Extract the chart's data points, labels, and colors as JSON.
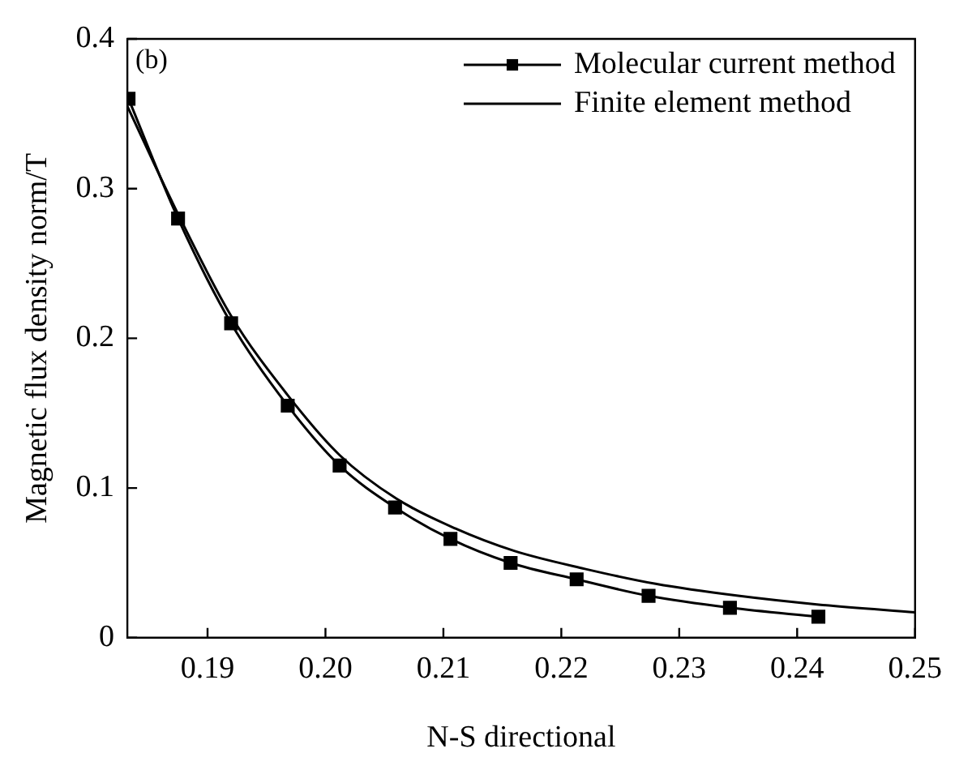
{
  "chart_data": {
    "type": "line",
    "xlabel": "N-S directional",
    "ylabel": "Magnetic flux density norm/T",
    "annotations": [
      "(b)"
    ],
    "xlim": [
      0.1832,
      0.25
    ],
    "xticks": [
      0.19,
      {
        "value": 0.2,
        "label": "0.20"
      },
      0.21,
      0.22,
      0.23,
      0.24,
      0.25
    ],
    "ylim": [
      0,
      0.4
    ],
    "yticks": [
      0,
      0.1,
      0.2,
      0.3,
      0.4
    ],
    "grid": false,
    "legend": "top right",
    "series": [
      {
        "name": "Molecular current method",
        "color": "#000000",
        "marker": "square",
        "x": [
          0.1833,
          0.1875,
          0.192,
          0.1968,
          0.2012,
          0.2059,
          0.2106,
          0.2157,
          0.2213,
          0.2274,
          0.2343,
          0.2418
        ],
        "values": [
          0.36,
          0.28,
          0.21,
          0.155,
          0.115,
          0.087,
          0.066,
          0.05,
          0.039,
          0.028,
          0.02,
          0.014
        ]
      },
      {
        "name": "Finite element method",
        "color": "#000000",
        "marker": "none",
        "x": [
          0.1832,
          0.1875,
          0.192,
          0.1968,
          0.2012,
          0.206,
          0.211,
          0.216,
          0.222,
          0.228,
          0.235,
          0.242,
          0.25
        ],
        "values": [
          0.355,
          0.283,
          0.215,
          0.162,
          0.122,
          0.093,
          0.073,
          0.058,
          0.046,
          0.036,
          0.028,
          0.022,
          0.017
        ]
      }
    ]
  }
}
